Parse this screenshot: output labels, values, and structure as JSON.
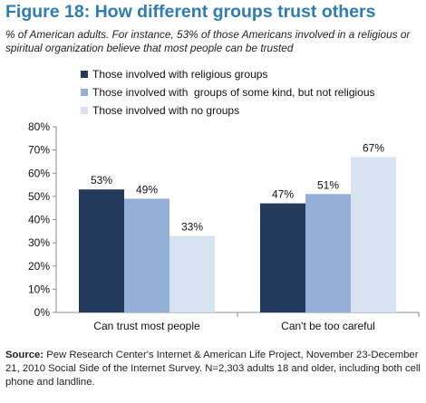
{
  "title": "Figure 18: How different groups trust others",
  "subtitle": "% of American adults. For instance, 53% of those Americans involved in a religious or spiritual organization believe that most people can be trusted",
  "source": {
    "label": "Source:",
    "text": " Pew Research Center's Internet & American Life Project, November 23-December 21, 2010 Social Side of the Internet Survey. N=2,303 adults 18 and older, including both cell phone and landline."
  },
  "chart_data": {
    "type": "bar",
    "categories": [
      "Can trust most people",
      "Can't be too careful"
    ],
    "series": [
      {
        "name": "Those involved with religious groups",
        "values": [
          53,
          47
        ],
        "color": "#243a5c"
      },
      {
        "name": "Those involved with  groups of some kind, but not religious",
        "values": [
          49,
          51
        ],
        "color": "#94b0d8"
      },
      {
        "name": "Those involved with no groups",
        "values": [
          33,
          67
        ],
        "color": "#d8e3f2"
      }
    ],
    "ylim": [
      0,
      80
    ],
    "yticks": [
      0,
      10,
      20,
      30,
      40,
      50,
      60,
      70,
      80
    ],
    "tick_suffix": "%",
    "data_label_suffix": "%",
    "grid": false,
    "legend_position": "top"
  }
}
